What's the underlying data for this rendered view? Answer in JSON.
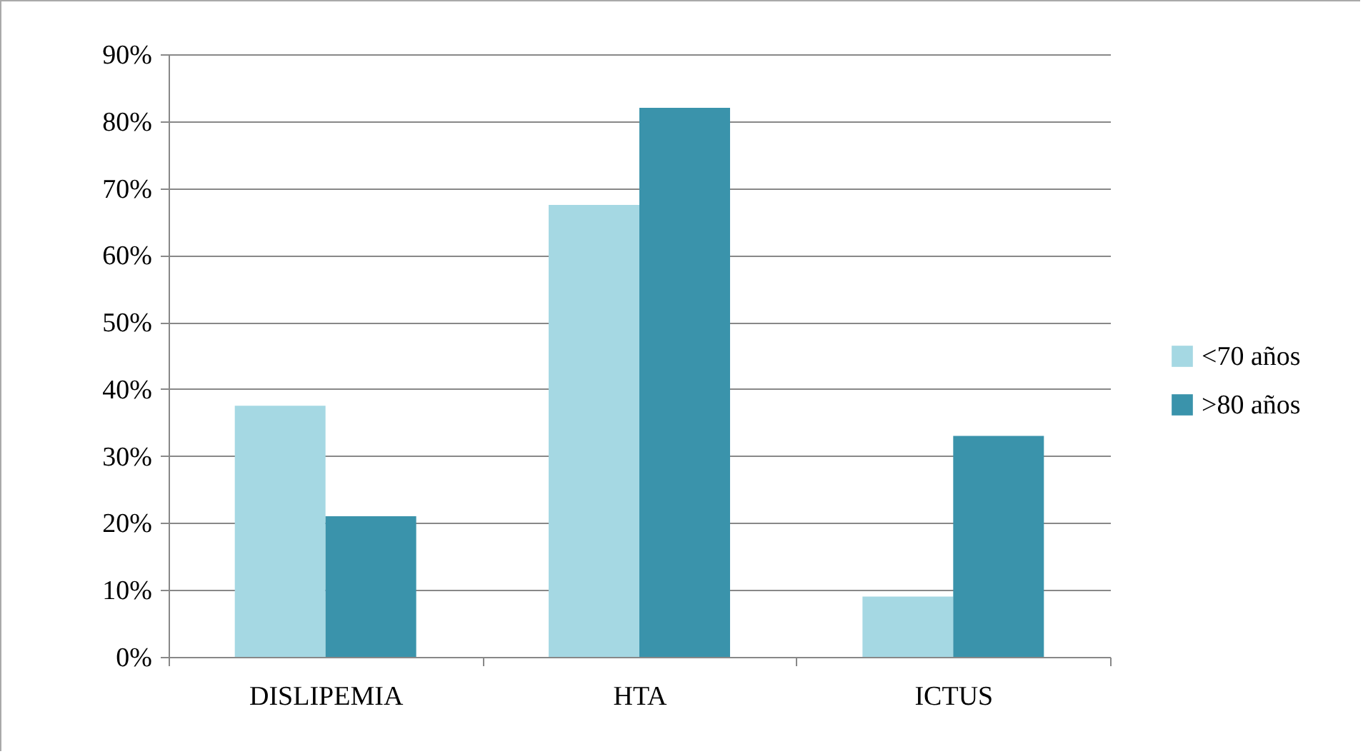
{
  "chart_data": {
    "type": "bar",
    "categories": [
      "DISLIPEMIA",
      "HTA",
      "ICTUS"
    ],
    "series": [
      {
        "name": "<70 años",
        "color": "#a5d8e3",
        "values": [
          37.5,
          67.5,
          9
        ]
      },
      {
        "name": ">80 años",
        "color": "#3a93ab",
        "values": [
          21,
          82,
          33
        ]
      }
    ],
    "ylim": [
      0,
      90
    ],
    "yticks": [
      {
        "value": 0,
        "label": "0%"
      },
      {
        "value": 10,
        "label": "10%"
      },
      {
        "value": 20,
        "label": "20%"
      },
      {
        "value": 30,
        "label": "30%"
      },
      {
        "value": 40,
        "label": "40%"
      },
      {
        "value": 50,
        "label": "50%"
      },
      {
        "value": 60,
        "label": "60%"
      },
      {
        "value": 70,
        "label": "70%"
      },
      {
        "value": 80,
        "label": "80%"
      },
      {
        "value": 90,
        "label": "90%"
      }
    ],
    "grid": "y",
    "legend": "right"
  }
}
